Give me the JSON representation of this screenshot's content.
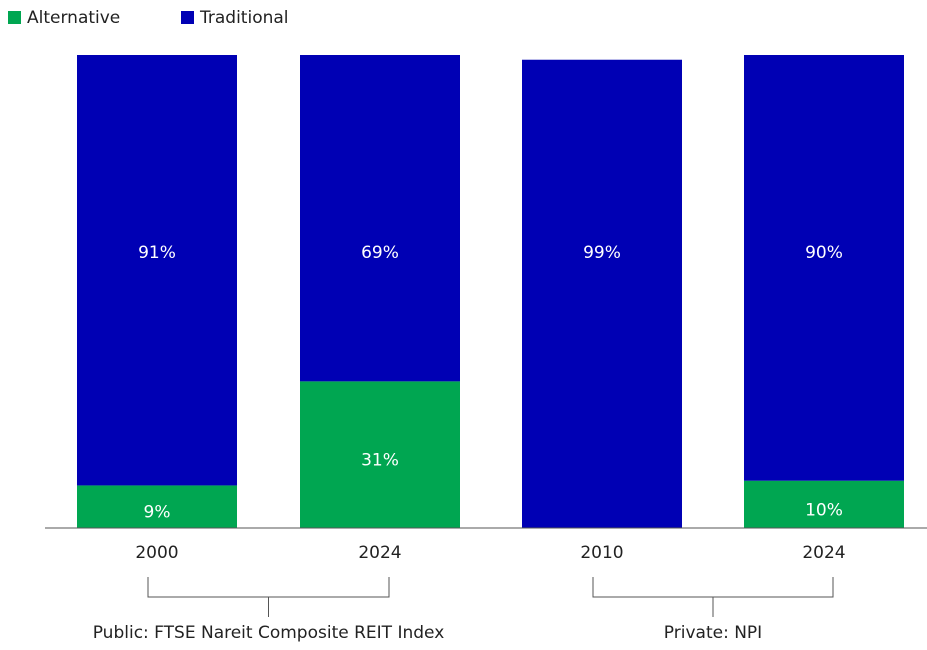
{
  "chart_data": {
    "type": "stacked_bar",
    "categories": [
      "2000",
      "2024",
      "2010",
      "2024"
    ],
    "series": [
      {
        "name": "Alternative",
        "color": "#00a651",
        "values": [
          9,
          31,
          null,
          10
        ],
        "value_labels": [
          "9%",
          "31%",
          null,
          "10%"
        ]
      },
      {
        "name": "Traditional",
        "color": "#0000b4",
        "values": [
          91,
          69,
          99,
          90
        ],
        "value_labels": [
          "91%",
          "69%",
          "99%",
          "90%"
        ]
      }
    ],
    "groups": [
      {
        "label": "Public: FTSE Nareit Composite REIT Index",
        "categories": [
          0,
          1
        ]
      },
      {
        "label": "Private: NPI",
        "categories": [
          2,
          3
        ]
      }
    ],
    "ylim": [
      0,
      100
    ],
    "legend": "top-left"
  }
}
